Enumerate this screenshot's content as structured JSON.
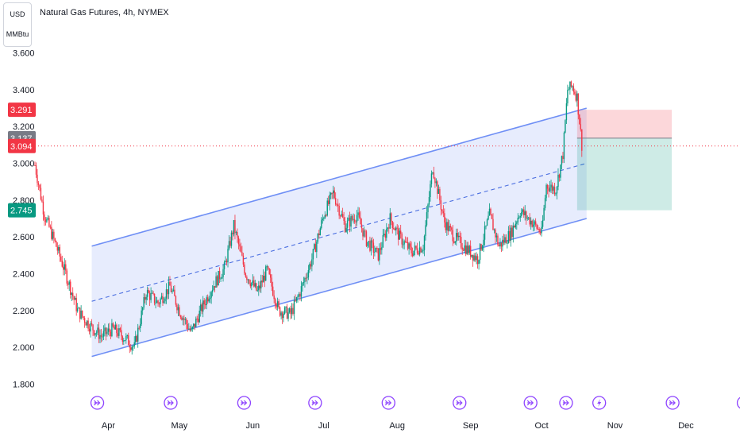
{
  "unit_selector": {
    "line1": "USD",
    "line2": "MMBtu"
  },
  "chart_data": {
    "type": "candlestick",
    "title": "Natural Gas Futures, 4h, NYMEX",
    "y_ticks": [
      "3.600",
      "3.400",
      "3.200",
      "3.000",
      "2.800",
      "2.600",
      "2.400",
      "2.200",
      "2.000",
      "1.800"
    ],
    "x_ticks": [
      "Apr",
      "May",
      "Jun",
      "Jul",
      "Aug",
      "Sep",
      "Oct",
      "Nov",
      "Dec"
    ],
    "ylim": [
      1.78,
      3.62
    ],
    "price_tags": [
      {
        "label": "3.291",
        "value": 3.291,
        "color": "#f23645"
      },
      {
        "label": "3.137",
        "value": 3.137,
        "color": "#787b86"
      },
      {
        "label": "3.094",
        "value": 3.094,
        "color": "#f23645"
      },
      {
        "label": "2.745",
        "value": 2.745,
        "color": "#089981"
      }
    ],
    "current_price": 3.094,
    "colors": {
      "up": "#089981",
      "down": "#f23645",
      "channel": "#6f8ff5",
      "event": "#8e44ff"
    },
    "channel": {
      "upper_start": 2.55,
      "upper_end": 3.3,
      "lower_start": 1.95,
      "lower_end": 2.7,
      "start_date": "Mar 25",
      "end_date": "Oct 20"
    },
    "position": {
      "stop": 3.291,
      "entry": 3.137,
      "target": 2.745,
      "start_date": "Oct 16",
      "end_date": "Nov 25"
    },
    "key_levels": [
      {
        "date": "Mar 1",
        "value": 2.99
      },
      {
        "date": "Mar 5",
        "value": 2.72
      },
      {
        "date": "Mar 10",
        "value": 2.55
      },
      {
        "date": "Mar 14",
        "value": 2.4
      },
      {
        "date": "Mar 19",
        "value": 2.2
      },
      {
        "date": "Mar 24",
        "value": 2.12
      },
      {
        "date": "Mar 29",
        "value": 2.06
      },
      {
        "date": "Apr 3",
        "value": 2.1
      },
      {
        "date": "Apr 8",
        "value": 2.05
      },
      {
        "date": "Apr 12",
        "value": 2.0
      },
      {
        "date": "Apr 17",
        "value": 2.3
      },
      {
        "date": "Apr 22",
        "value": 2.24
      },
      {
        "date": "Apr 27",
        "value": 2.33
      },
      {
        "date": "May 1",
        "value": 2.2
      },
      {
        "date": "May 6",
        "value": 2.08
      },
      {
        "date": "May 10",
        "value": 2.2
      },
      {
        "date": "May 15",
        "value": 2.33
      },
      {
        "date": "May 20",
        "value": 2.43
      },
      {
        "date": "May 24",
        "value": 2.66
      },
      {
        "date": "May 29",
        "value": 2.4
      },
      {
        "date": "Jun 3",
        "value": 2.3
      },
      {
        "date": "Jun 7",
        "value": 2.42
      },
      {
        "date": "Jun 12",
        "value": 2.2
      },
      {
        "date": "Jun 17",
        "value": 2.18
      },
      {
        "date": "Jun 21",
        "value": 2.3
      },
      {
        "date": "Jun 26",
        "value": 2.48
      },
      {
        "date": "Jul 1",
        "value": 2.72
      },
      {
        "date": "Jul 5",
        "value": 2.84
      },
      {
        "date": "Jul 10",
        "value": 2.66
      },
      {
        "date": "Jul 15",
        "value": 2.72
      },
      {
        "date": "Jul 19",
        "value": 2.58
      },
      {
        "date": "Jul 24",
        "value": 2.5
      },
      {
        "date": "Jul 29",
        "value": 2.7
      },
      {
        "date": "Aug 2",
        "value": 2.6
      },
      {
        "date": "Aug 7",
        "value": 2.52
      },
      {
        "date": "Aug 12",
        "value": 2.55
      },
      {
        "date": "Aug 16",
        "value": 2.98
      },
      {
        "date": "Aug 21",
        "value": 2.68
      },
      {
        "date": "Aug 25",
        "value": 2.6
      },
      {
        "date": "Aug 30",
        "value": 2.54
      },
      {
        "date": "Sep 4",
        "value": 2.48
      },
      {
        "date": "Sep 9",
        "value": 2.72
      },
      {
        "date": "Sep 13",
        "value": 2.55
      },
      {
        "date": "Sep 18",
        "value": 2.62
      },
      {
        "date": "Sep 22",
        "value": 2.74
      },
      {
        "date": "Sep 27",
        "value": 2.68
      },
      {
        "date": "Oct 1",
        "value": 2.62
      },
      {
        "date": "Oct 3",
        "value": 2.88
      },
      {
        "date": "Oct 7",
        "value": 2.86
      },
      {
        "date": "Oct 10",
        "value": 3.05
      },
      {
        "date": "Oct 12",
        "value": 3.4
      },
      {
        "date": "Oct 14",
        "value": 3.42
      },
      {
        "date": "Oct 16",
        "value": 3.36
      },
      {
        "date": "Oct 18",
        "value": 3.1
      }
    ]
  }
}
